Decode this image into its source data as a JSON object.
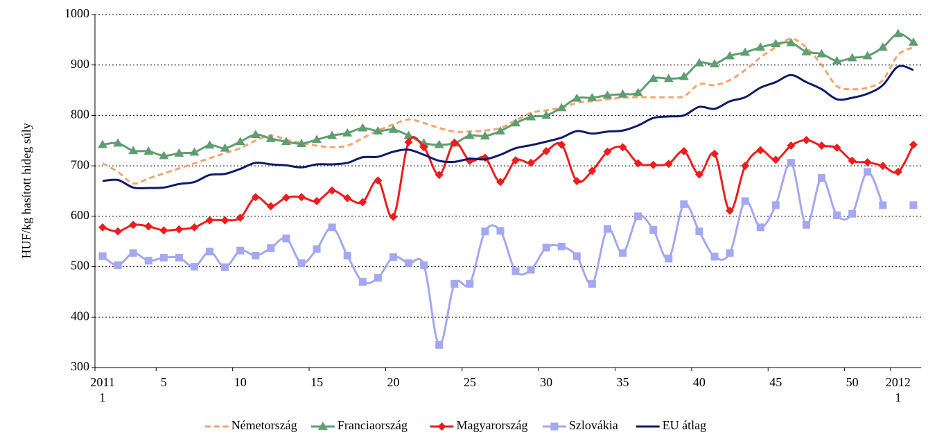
{
  "chart_data": {
    "type": "line",
    "y_label": "HUF/kg hasított hideg súly",
    "categories": [
      "2011\n1",
      null,
      null,
      null,
      "5",
      null,
      null,
      null,
      null,
      "10",
      null,
      null,
      null,
      null,
      "15",
      null,
      null,
      null,
      null,
      "20",
      null,
      null,
      null,
      null,
      "25",
      null,
      null,
      null,
      null,
      "30",
      null,
      null,
      null,
      null,
      "35",
      null,
      null,
      null,
      null,
      "40",
      null,
      null,
      null,
      null,
      "45",
      null,
      null,
      null,
      null,
      "50",
      null,
      null,
      "2012\n1",
      null
    ],
    "ylim": [
      300,
      1000
    ],
    "yticks": [
      300,
      400,
      500,
      600,
      700,
      800,
      900,
      1000
    ],
    "grid": true,
    "legend": "bottom",
    "series": [
      {
        "name": "Németország",
        "color": "#f5a46e",
        "dash": true,
        "marker": null,
        "values": [
          705,
          688,
          665,
          675,
          685,
          695,
          705,
          715,
          725,
          735,
          750,
          760,
          752,
          745,
          740,
          737,
          740,
          755,
          770,
          782,
          792,
          785,
          775,
          768,
          768,
          770,
          775,
          790,
          805,
          810,
          815,
          825,
          828,
          832,
          835,
          836,
          836,
          836,
          838,
          862,
          860,
          870,
          890,
          915,
          935,
          952,
          935,
          900,
          858,
          852,
          855,
          870,
          920,
          935
        ]
      },
      {
        "name": "Franciaország",
        "color": "#5e9e70",
        "dash": false,
        "marker": "triangle",
        "values": [
          742,
          745,
          730,
          729,
          720,
          725,
          727,
          741,
          735,
          748,
          762,
          754,
          748,
          744,
          752,
          760,
          765,
          775,
          769,
          772,
          760,
          745,
          742,
          745,
          760,
          759,
          769,
          785,
          797,
          800,
          815,
          834,
          835,
          840,
          842,
          845,
          873,
          873,
          877,
          904,
          902,
          918,
          925,
          935,
          942,
          944,
          926,
          922,
          908,
          914,
          918,
          935,
          962,
          945
        ]
      },
      {
        "name": "Magyarország",
        "color": "#ee1c1c",
        "dash": false,
        "marker": "diamond",
        "values": [
          578,
          570,
          583,
          580,
          572,
          574,
          578,
          592,
          592,
          597,
          638,
          620,
          637,
          638,
          630,
          651,
          636,
          628,
          671,
          599,
          747,
          737,
          682,
          746,
          710,
          716,
          668,
          711,
          706,
          729,
          742,
          670,
          690,
          728,
          737,
          705,
          702,
          704,
          729,
          683,
          724,
          611,
          700,
          731,
          712,
          740,
          751,
          740,
          736,
          710,
          707,
          700,
          688,
          742
        ]
      },
      {
        "name": "Szlovákia",
        "color": "#a3a8f0",
        "dash": false,
        "marker": "square",
        "values": [
          521,
          503,
          527,
          512,
          518,
          518,
          500,
          530,
          499,
          532,
          522,
          537,
          556,
          507,
          535,
          578,
          522,
          470,
          478,
          519,
          507,
          503,
          345,
          466,
          466,
          570,
          571,
          491,
          494,
          538,
          540,
          521,
          466,
          575,
          527,
          600,
          573,
          516,
          624,
          570,
          520,
          527,
          630,
          578,
          622,
          706,
          583,
          676,
          602,
          605,
          688,
          622,
          null,
          622
        ]
      },
      {
        "name": "EU átlag",
        "color": "#0d1a6b",
        "dash": false,
        "marker": null,
        "values": [
          670,
          672,
          657,
          656,
          657,
          664,
          668,
          682,
          684,
          694,
          706,
          703,
          701,
          697,
          703,
          703,
          706,
          717,
          718,
          728,
          732,
          722,
          710,
          708,
          714,
          713,
          722,
          735,
          741,
          748,
          756,
          769,
          764,
          768,
          770,
          780,
          795,
          798,
          800,
          817,
          813,
          828,
          836,
          855,
          866,
          880,
          866,
          852,
          832,
          835,
          843,
          860,
          897,
          890
        ]
      }
    ]
  }
}
